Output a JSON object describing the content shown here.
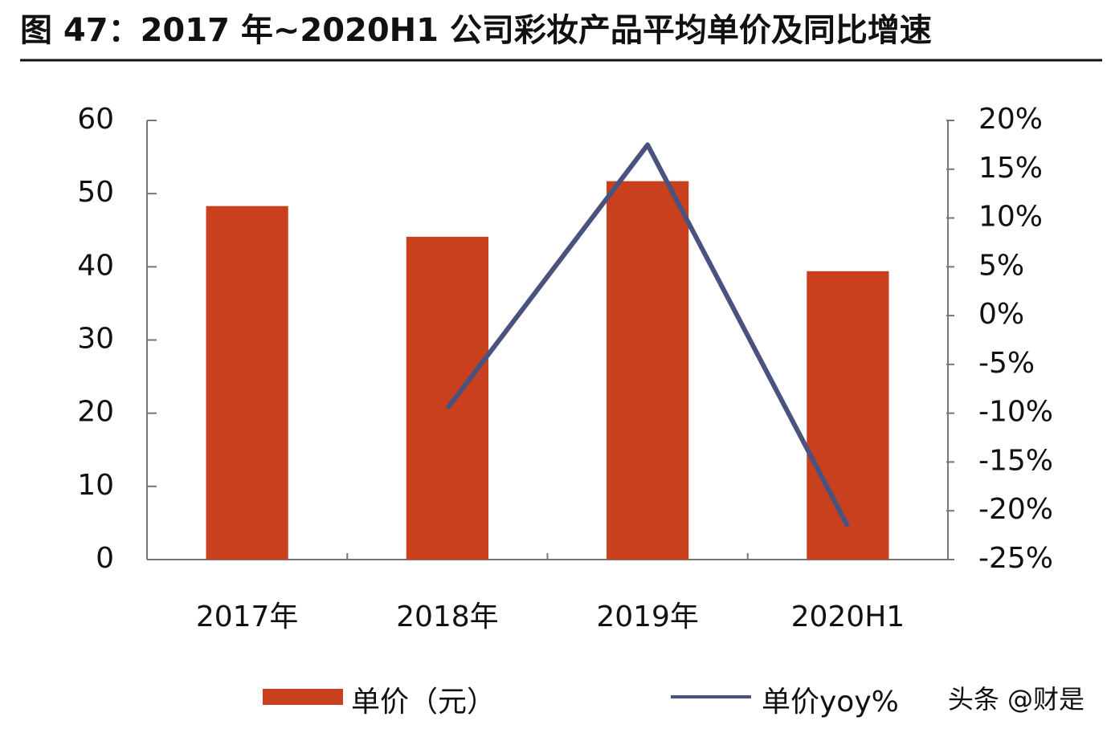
{
  "chart_data": {
    "type": "bar",
    "title": "图 47：2017 年~2020H1 公司彩妆产品平均单价及同比增速",
    "categories": [
      "2017年",
      "2018年",
      "2019年",
      "2020H1"
    ],
    "series": [
      {
        "name": "单价（元）",
        "type": "bar",
        "color": "#c8401e",
        "values": [
          48.3,
          44.1,
          51.7,
          39.4
        ]
      },
      {
        "name": "单价yoy%",
        "type": "line",
        "axis": "y2",
        "color": "#4a5280",
        "values": [
          null,
          -9.5,
          17.5,
          -21.6
        ]
      }
    ],
    "ylim": [
      0,
      60
    ],
    "yticks": [
      0,
      10,
      20,
      30,
      40,
      50,
      60
    ],
    "y2lim": [
      -25,
      20
    ],
    "y2ticks": [
      {
        "value": -25,
        "label": "-25%"
      },
      {
        "value": -20,
        "label": "-20%"
      },
      {
        "value": -15,
        "label": "-15%"
      },
      {
        "value": -10,
        "label": "-10%"
      },
      {
        "value": -5,
        "label": "-5%"
      },
      {
        "value": 0,
        "label": "0%"
      },
      {
        "value": 5,
        "label": "5%"
      },
      {
        "value": 10,
        "label": "10%"
      },
      {
        "value": 15,
        "label": "15%"
      },
      {
        "value": 20,
        "label": "20%"
      }
    ],
    "watermark": "头条 @财是"
  }
}
